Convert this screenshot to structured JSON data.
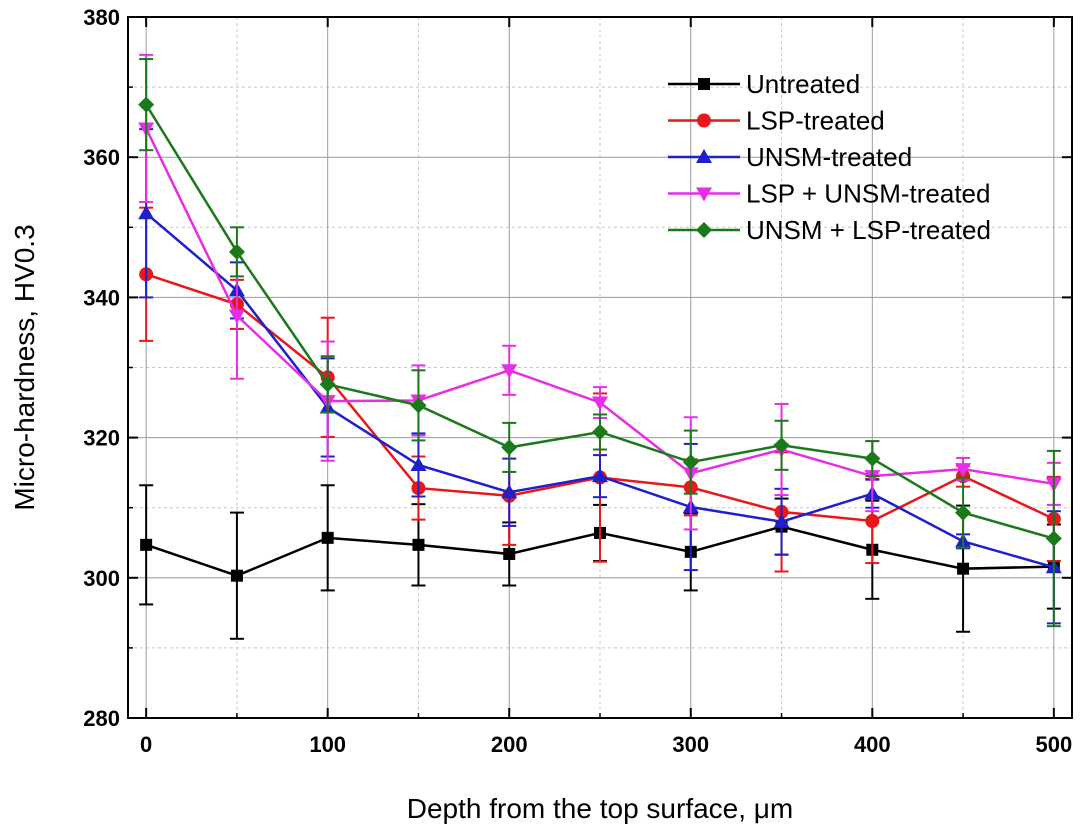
{
  "chart_data": {
    "type": "line",
    "xlabel": "Depth from the top surface, μm",
    "ylabel": "Micro-hardness, HV0.3",
    "xlim": [
      -10,
      510
    ],
    "ylim": [
      280,
      380
    ],
    "x_ticks": [
      0,
      100,
      200,
      300,
      400,
      500
    ],
    "y_ticks": [
      280,
      300,
      320,
      340,
      360,
      380
    ],
    "grid": true,
    "legend_position": "top-right",
    "x": [
      0,
      50,
      100,
      150,
      200,
      250,
      300,
      350,
      400,
      450,
      500
    ],
    "series": [
      {
        "name": "Untreated",
        "color": "#000000",
        "marker": "square",
        "values": [
          304.7,
          300.3,
          305.7,
          304.7,
          303.4,
          306.4,
          303.7,
          307.3,
          304.0,
          301.3,
          301.6
        ],
        "errors": [
          8.5,
          9.0,
          7.5,
          5.8,
          4.5,
          4.0,
          5.5,
          4.0,
          7.0,
          9.0,
          6.0
        ]
      },
      {
        "name": "LSP-treated",
        "color": "#e8171a",
        "marker": "circle",
        "values": [
          343.3,
          339.0,
          328.6,
          312.8,
          311.7,
          314.3,
          312.9,
          309.4,
          308.1,
          314.5,
          308.4
        ],
        "errors": [
          9.5,
          3.5,
          8.5,
          4.5,
          7.0,
          12.0,
          4.0,
          8.5,
          6.0,
          1.5,
          6.0
        ]
      },
      {
        "name": "UNSM-treated",
        "color": "#1f1fcc",
        "marker": "triangle-up",
        "values": [
          352.0,
          341.0,
          324.3,
          316.1,
          312.2,
          314.5,
          310.1,
          308.0,
          312.0,
          305.2,
          301.5
        ],
        "errors": [
          12.0,
          4.0,
          7.0,
          4.5,
          4.8,
          3.0,
          9.0,
          4.7,
          2.0,
          1.0,
          8.0
        ]
      },
      {
        "name": "LSP + UNSM-treated",
        "color": "#e62ee6",
        "marker": "triangle-down",
        "values": [
          364.1,
          337.4,
          325.2,
          325.3,
          329.6,
          325.0,
          314.9,
          318.3,
          314.5,
          315.5,
          313.4
        ],
        "errors": [
          10.5,
          9.0,
          8.5,
          5.0,
          3.5,
          2.2,
          8.0,
          6.5,
          5.0,
          1.6,
          3.0
        ]
      },
      {
        "name": "UNSM + LSP-treated",
        "color": "#1a7a1a",
        "marker": "diamond",
        "values": [
          367.5,
          346.5,
          327.6,
          324.6,
          318.6,
          320.8,
          316.5,
          318.9,
          317.0,
          309.3,
          305.6
        ],
        "errors": [
          6.5,
          3.5,
          4.0,
          5.0,
          3.5,
          2.5,
          4.5,
          3.5,
          2.5,
          5.0,
          12.5
        ]
      }
    ]
  }
}
